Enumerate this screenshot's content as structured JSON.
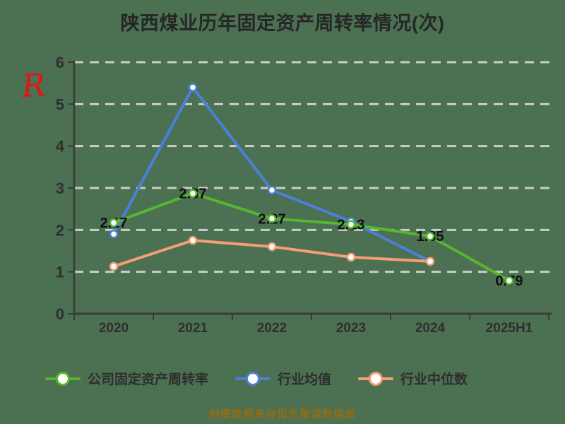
{
  "title": "陕西煤业历年固定资产周转率情况(次)",
  "y_axis_mark": "R",
  "footer_note": "制图数据来自恒生聚源数据库",
  "colors": {
    "background": "#4b7052",
    "title_text": "#262626",
    "axis": "#3a3a3a",
    "gridline": "#cccccc",
    "tick_label": "#2f2f2f",
    "data_label": "#0f0f0f",
    "footer_text": "#8f6e16",
    "red_mark": "#e41414",
    "company": "#57b52f",
    "industry_avg": "#4c80d8",
    "industry_median": "#f59e74"
  },
  "chart_data": {
    "type": "line",
    "title": "陕西煤业历年固定资产周转率情况(次)",
    "categories": [
      "2020",
      "2021",
      "2022",
      "2023",
      "2024",
      "2025H1"
    ],
    "series": [
      {
        "key": "company",
        "name": "公司固定资产周转率",
        "color": "#57b52f",
        "values": [
          2.17,
          2.87,
          2.27,
          2.13,
          1.85,
          0.79
        ],
        "point_labels": [
          "2.17",
          "2.87",
          "2.27",
          "2.13",
          "1.85",
          "0.79"
        ]
      },
      {
        "key": "industry_avg",
        "name": "行业均值",
        "color": "#4c80d8",
        "values": [
          1.9,
          5.4,
          2.95,
          2.2,
          1.25,
          null
        ]
      },
      {
        "key": "industry_median",
        "name": "行业中位数",
        "color": "#f59e74",
        "values": [
          1.13,
          1.75,
          1.6,
          1.35,
          1.25,
          null
        ]
      }
    ],
    "xlabel": "",
    "ylabel": "",
    "ylim": [
      0,
      6
    ],
    "y_ticks": [
      0,
      1,
      2,
      3,
      4,
      5,
      6
    ],
    "grid": "horizontal-dashed",
    "legend_position": "bottom"
  }
}
